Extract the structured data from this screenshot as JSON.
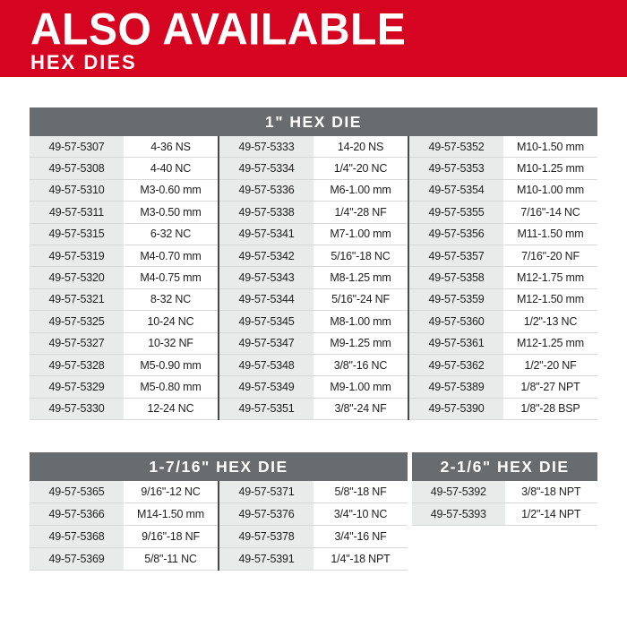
{
  "banner": {
    "title": "ALSO AVAILABLE",
    "subtitle": "HEX DIES",
    "bg_color": "#d50420",
    "text_color": "#ffffff"
  },
  "colors": {
    "table_header_bg": "#696c6e",
    "table_header_text": "#ffffff",
    "sku_cell_bg": "#e9eaea",
    "size_cell_bg": "#ffffff",
    "row_divider": "#d8dada",
    "column_divider": "#47494b",
    "cell_text": "#1e1e1e"
  },
  "tables": [
    {
      "title": "1\" HEX DIE",
      "columns": [
        [
          {
            "sku": "49-57-5307",
            "size": "4-36 NS"
          },
          {
            "sku": "49-57-5308",
            "size": "4-40 NC"
          },
          {
            "sku": "49-57-5310",
            "size": "M3-0.60 mm"
          },
          {
            "sku": "49-57-5311",
            "size": "M3-0.50 mm"
          },
          {
            "sku": "49-57-5315",
            "size": "6-32 NC"
          },
          {
            "sku": "49-57-5319",
            "size": "M4-0.70 mm"
          },
          {
            "sku": "49-57-5320",
            "size": "M4-0.75 mm"
          },
          {
            "sku": "49-57-5321",
            "size": "8-32 NC"
          },
          {
            "sku": "49-57-5325",
            "size": "10-24 NC"
          },
          {
            "sku": "49-57-5327",
            "size": "10-32 NF"
          },
          {
            "sku": "49-57-5328",
            "size": "M5-0.90 mm"
          },
          {
            "sku": "49-57-5329",
            "size": "M5-0.80 mm"
          },
          {
            "sku": "49-57-5330",
            "size": "12-24 NC"
          }
        ],
        [
          {
            "sku": "49-57-5333",
            "size": "14-20 NS"
          },
          {
            "sku": "49-57-5334",
            "size": "1/4\"-20 NC"
          },
          {
            "sku": "49-57-5336",
            "size": "M6-1.00 mm"
          },
          {
            "sku": "49-57-5338",
            "size": "1/4\"-28 NF"
          },
          {
            "sku": "49-57-5341",
            "size": "M7-1.00 mm"
          },
          {
            "sku": "49-57-5342",
            "size": "5/16\"-18 NC"
          },
          {
            "sku": "49-57-5343",
            "size": "M8-1.25 mm"
          },
          {
            "sku": "49-57-5344",
            "size": "5/16\"-24 NF"
          },
          {
            "sku": "49-57-5345",
            "size": "M8-1.00 mm"
          },
          {
            "sku": "49-57-5347",
            "size": "M9-1.25 mm"
          },
          {
            "sku": "49-57-5348",
            "size": "3/8\"-16 NC"
          },
          {
            "sku": "49-57-5349",
            "size": "M9-1.00 mm"
          },
          {
            "sku": "49-57-5351",
            "size": "3/8\"-24 NF"
          }
        ],
        [
          {
            "sku": "49-57-5352",
            "size": "M10-1.50 mm"
          },
          {
            "sku": "49-57-5353",
            "size": "M10-1.25 mm"
          },
          {
            "sku": "49-57-5354",
            "size": "M10-1.00 mm"
          },
          {
            "sku": "49-57-5355",
            "size": "7/16\"-14 NC"
          },
          {
            "sku": "49-57-5356",
            "size": "M11-1.50 mm"
          },
          {
            "sku": "49-57-5357",
            "size": "7/16\"-20 NF"
          },
          {
            "sku": "49-57-5358",
            "size": "M12-1.75 mm"
          },
          {
            "sku": "49-57-5359",
            "size": "M12-1.50 mm"
          },
          {
            "sku": "49-57-5360",
            "size": "1/2\"-13 NC"
          },
          {
            "sku": "49-57-5361",
            "size": "M12-1.25 mm"
          },
          {
            "sku": "49-57-5362",
            "size": "1/2\"-20 NF"
          },
          {
            "sku": "49-57-5389",
            "size": "1/8\"-27 NPT"
          },
          {
            "sku": "49-57-5390",
            "size": "1/8\"-28 BSP"
          }
        ]
      ]
    },
    {
      "title": "1-7/16\" HEX DIE",
      "columns": [
        [
          {
            "sku": "49-57-5365",
            "size": "9/16\"-12 NC"
          },
          {
            "sku": "49-57-5366",
            "size": "M14-1.50 mm"
          },
          {
            "sku": "49-57-5368",
            "size": "9/16\"-18 NF"
          },
          {
            "sku": "49-57-5369",
            "size": "5/8\"-11 NC"
          }
        ],
        [
          {
            "sku": "49-57-5371",
            "size": "5/8\"-18 NF"
          },
          {
            "sku": "49-57-5376",
            "size": "3/4\"-10 NC"
          },
          {
            "sku": "49-57-5378",
            "size": "3/4\"-16 NF"
          },
          {
            "sku": "49-57-5391",
            "size": "1/4\"-18 NPT"
          }
        ]
      ]
    },
    {
      "title": "2-1/6\" HEX DIE",
      "columns": [
        [
          {
            "sku": "49-57-5392",
            "size": "3/8\"-18 NPT"
          },
          {
            "sku": "49-57-5393",
            "size": "1/2\"-14 NPT"
          }
        ]
      ]
    }
  ]
}
